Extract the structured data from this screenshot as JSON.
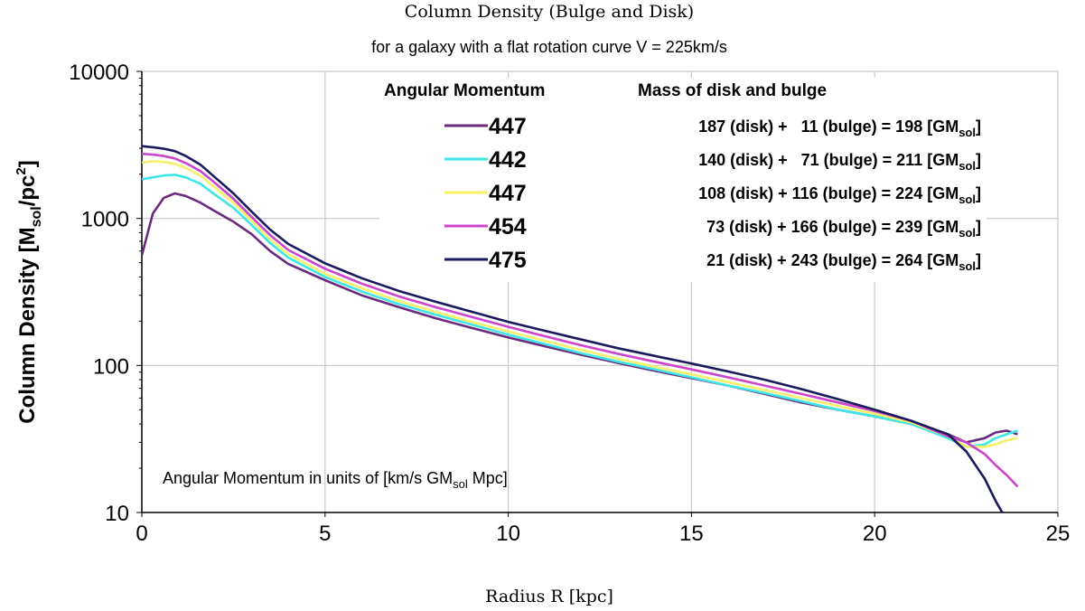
{
  "chart_data": {
    "type": "line",
    "title": "Column Density (Bulge and Disk)",
    "subtitle": "for a galaxy with a flat rotation curve V = 225km/s",
    "xlabel": "Radius R [kpc]",
    "ylabel": {
      "main": "Column Density [M",
      "sub": "sol",
      "mid": "/pc",
      "sup": "2",
      "end": "]"
    },
    "xlim": [
      0,
      25
    ],
    "ylim": [
      10,
      10000
    ],
    "yscale": "log",
    "grid": true,
    "x_ticks": [
      "0",
      "5",
      "10",
      "15",
      "20",
      "25"
    ],
    "y_ticks": [
      "10",
      "100",
      "1000",
      "10000"
    ],
    "legend": {
      "placement": "top-right",
      "header_momentum": "Angular Momentum",
      "header_mass": "Mass of disk and bulge"
    },
    "annotation": {
      "pre": "Angular Momentum in units of [km/s GM",
      "sub": "sol",
      "post": " Mpc]"
    },
    "series": [
      {
        "name": "447",
        "mass_label": "187 (disk) +   11 (bulge) = 198 [GM",
        "mass_sub": "sol",
        "mass_end": "]",
        "color": "#6a2a7e",
        "x": [
          0,
          0.3,
          0.6,
          0.9,
          1.2,
          1.6,
          2.0,
          2.5,
          3.0,
          3.5,
          4.0,
          5,
          6,
          7,
          8,
          9,
          10,
          11,
          12,
          13,
          14,
          15,
          16,
          17,
          18,
          19,
          20,
          21,
          22,
          22.5,
          23,
          23.3,
          23.6,
          23.9
        ],
        "y": [
          560,
          1080,
          1380,
          1480,
          1420,
          1280,
          1120,
          950,
          780,
          600,
          490,
          380,
          300,
          250,
          210,
          180,
          155,
          135,
          118,
          104,
          92,
          82,
          73,
          64,
          56,
          50,
          45,
          40,
          34,
          30,
          32,
          35,
          36,
          34
        ]
      },
      {
        "name": "442",
        "mass_label": "140 (disk) +   71 (bulge) = 211 [GM",
        "mass_sub": "sol",
        "mass_end": "]",
        "color": "#3ee6e6",
        "x": [
          0,
          0.3,
          0.6,
          0.9,
          1.2,
          1.6,
          2.0,
          2.5,
          3.0,
          3.5,
          4.0,
          5,
          6,
          7,
          8,
          9,
          10,
          11,
          12,
          13,
          14,
          15,
          16,
          17,
          18,
          19,
          20,
          21,
          22,
          22.5,
          23,
          23.3,
          23.6,
          23.9
        ],
        "y": [
          1850,
          1900,
          1960,
          1980,
          1900,
          1720,
          1450,
          1180,
          900,
          680,
          540,
          400,
          318,
          262,
          222,
          190,
          162,
          140,
          121,
          106,
          94,
          83,
          73,
          65,
          57,
          50,
          45,
          40,
          32,
          28,
          29,
          32,
          34,
          36
        ]
      },
      {
        "name": "447",
        "mass_label": "108 (disk) + 116 (bulge) = 224 [GM",
        "mass_sub": "sol",
        "mass_end": "]",
        "color": "#f5f06a",
        "x": [
          0,
          0.3,
          0.6,
          0.9,
          1.2,
          1.6,
          2.0,
          2.5,
          3.0,
          3.5,
          4.0,
          5,
          6,
          7,
          8,
          9,
          10,
          11,
          12,
          13,
          14,
          15,
          16,
          17,
          18,
          19,
          20,
          21,
          22,
          22.5,
          23,
          23.3,
          23.6,
          23.9
        ],
        "y": [
          2400,
          2450,
          2420,
          2350,
          2200,
          1950,
          1620,
          1280,
          960,
          720,
          570,
          420,
          335,
          275,
          232,
          198,
          170,
          147,
          127,
          111,
          98,
          87,
          77,
          68,
          60,
          53,
          47,
          41,
          33,
          28,
          28,
          29,
          31,
          32
        ]
      },
      {
        "name": "454",
        "mass_label": "73 (disk) + 166 (bulge) = 239 [GM",
        "mass_sub": "sol",
        "mass_end": "]",
        "color": "#cc44cc",
        "x": [
          0,
          0.3,
          0.6,
          0.9,
          1.2,
          1.6,
          2.0,
          2.5,
          3.0,
          3.5,
          4.0,
          5,
          6,
          7,
          8,
          9,
          10,
          11,
          12,
          13,
          14,
          15,
          16,
          17,
          18,
          19,
          20,
          21,
          22,
          22.5,
          23,
          23.3,
          23.6,
          23.9
        ],
        "y": [
          2750,
          2720,
          2660,
          2560,
          2380,
          2100,
          1740,
          1360,
          1020,
          770,
          610,
          455,
          360,
          296,
          250,
          214,
          183,
          158,
          137,
          120,
          106,
          94,
          83,
          73,
          64,
          56,
          49,
          42,
          33,
          30,
          25,
          21,
          18,
          15
        ]
      },
      {
        "name": "475",
        "mass_label": "21 (disk) + 243 (bulge) = 264 [GM",
        "mass_sub": "sol",
        "mass_end": "]",
        "color": "#1a1a5e",
        "x": [
          0,
          0.3,
          0.6,
          0.9,
          1.2,
          1.6,
          2.0,
          2.5,
          3.0,
          3.5,
          4.0,
          5,
          6,
          7,
          8,
          9,
          10,
          11,
          12,
          13,
          14,
          15,
          16,
          17,
          18,
          19,
          20,
          21,
          22,
          22.5,
          23,
          23.3,
          23.5
        ],
        "y": [
          3100,
          3050,
          2980,
          2870,
          2660,
          2320,
          1900,
          1480,
          1110,
          840,
          670,
          495,
          392,
          322,
          272,
          232,
          198,
          172,
          150,
          131,
          116,
          103,
          91,
          80,
          69,
          59,
          50,
          42,
          34,
          26,
          17,
          12,
          9.8
        ]
      }
    ]
  }
}
